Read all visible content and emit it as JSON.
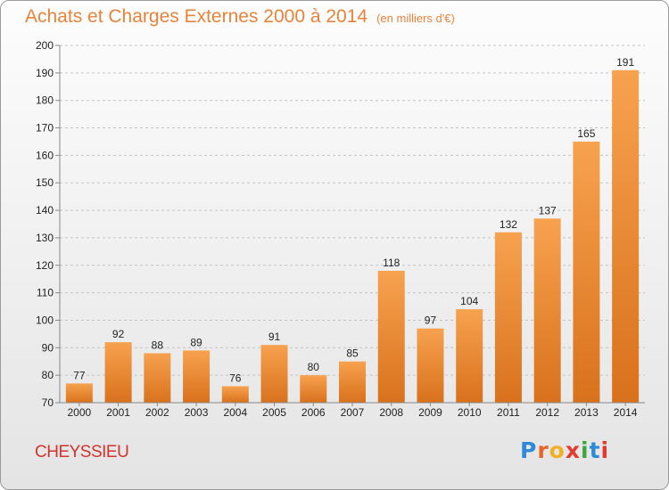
{
  "header": {
    "title": "Achats et Charges Externes 2000 à 2014",
    "subtitle": "(en milliers d'€)"
  },
  "footer": {
    "place": "CHEYSSIEU",
    "logo": "Proxiti"
  },
  "colors": {
    "bar_light": "#f7a24f",
    "bar_dark": "#d9711c",
    "accent": "#e8833a",
    "logo_letters": [
      "#2e8ad8",
      "#e6662a",
      "#f2b124",
      "#e23a2e",
      "#3aa83a",
      "#2e8ad8",
      "#e23a2e"
    ]
  },
  "chart_data": {
    "type": "bar",
    "title": "Achats et Charges Externes 2000 à 2014",
    "subtitle": "(en milliers d'€)",
    "categories": [
      "2000",
      "2001",
      "2002",
      "2003",
      "2004",
      "2005",
      "2006",
      "2007",
      "2008",
      "2009",
      "2010",
      "2011",
      "2012",
      "2013",
      "2014"
    ],
    "values": [
      77,
      92,
      88,
      89,
      76,
      91,
      80,
      85,
      118,
      97,
      104,
      132,
      137,
      165,
      191
    ],
    "ylim": [
      70,
      200
    ],
    "yticks": [
      70,
      80,
      90,
      100,
      110,
      120,
      130,
      140,
      150,
      160,
      170,
      180,
      190,
      200
    ],
    "xlabel": "",
    "ylabel": "",
    "grid": "horizontal dashed",
    "data_labels": true
  }
}
